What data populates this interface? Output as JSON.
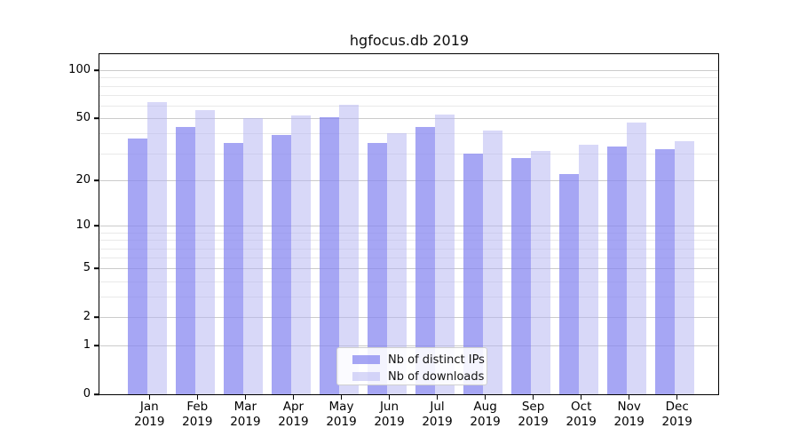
{
  "chart_data": {
    "type": "bar",
    "title": "hgfocus.db 2019",
    "categories": [
      "Jan 2019",
      "Feb 2019",
      "Mar 2019",
      "Apr 2019",
      "May 2019",
      "Jun 2019",
      "Jul 2019",
      "Aug 2019",
      "Sep 2019",
      "Oct 2019",
      "Nov 2019",
      "Dec 2019"
    ],
    "series": [
      {
        "name": "Nb of distinct IPs",
        "color": "rgba(132,132,240,0.72)",
        "color_solid": "#a6a6f4",
        "values": [
          37,
          44,
          35,
          39,
          51,
          35,
          44,
          30,
          28,
          22,
          33,
          32
        ]
      },
      {
        "name": "Nb of downloads",
        "color": "rgba(180,180,242,0.52)",
        "color_solid": "#d8d8f8",
        "values": [
          63,
          56,
          50,
          52,
          61,
          40,
          53,
          42,
          31,
          34,
          47,
          36
        ]
      }
    ],
    "xlabel": "",
    "ylabel": "",
    "yscale": "log1p",
    "ylim": [
      0,
      126
    ],
    "yticks": [
      0,
      1,
      2,
      5,
      10,
      20,
      50,
      100
    ],
    "minor_gridlines": [
      3,
      4,
      6,
      7,
      8,
      9,
      30,
      40,
      60,
      70,
      80,
      90
    ],
    "grid": "horizontal-major-and-minor",
    "legend_position": "lower center",
    "colors": {
      "major_grid": "#cbcbcb",
      "minor_grid": "#e9e9e9",
      "spine": "#000000",
      "background": "#ffffff"
    }
  }
}
